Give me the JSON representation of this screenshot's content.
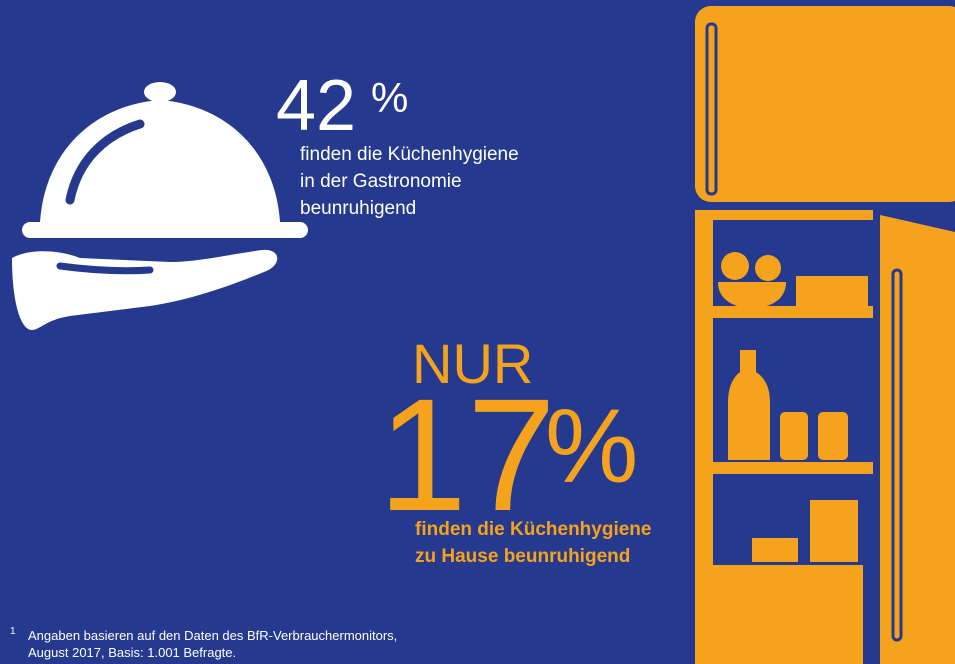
{
  "stats": [
    {
      "value": 42,
      "unit": "%",
      "description": [
        "finden die Küchenhygiene",
        "in der Gastronomie",
        "beunruhigend"
      ]
    },
    {
      "prefix": "NUR",
      "value": 17,
      "unit": "%",
      "description": [
        "finden die Küchenhygiene",
        "zu Hause beunruhigend"
      ]
    }
  ],
  "footnote": {
    "marker": "1",
    "lines": [
      "Angaben basieren auf den Daten des BfR-Verbrauchermonitors,",
      "August 2017, Basis: 1.001 Befragte."
    ]
  }
}
